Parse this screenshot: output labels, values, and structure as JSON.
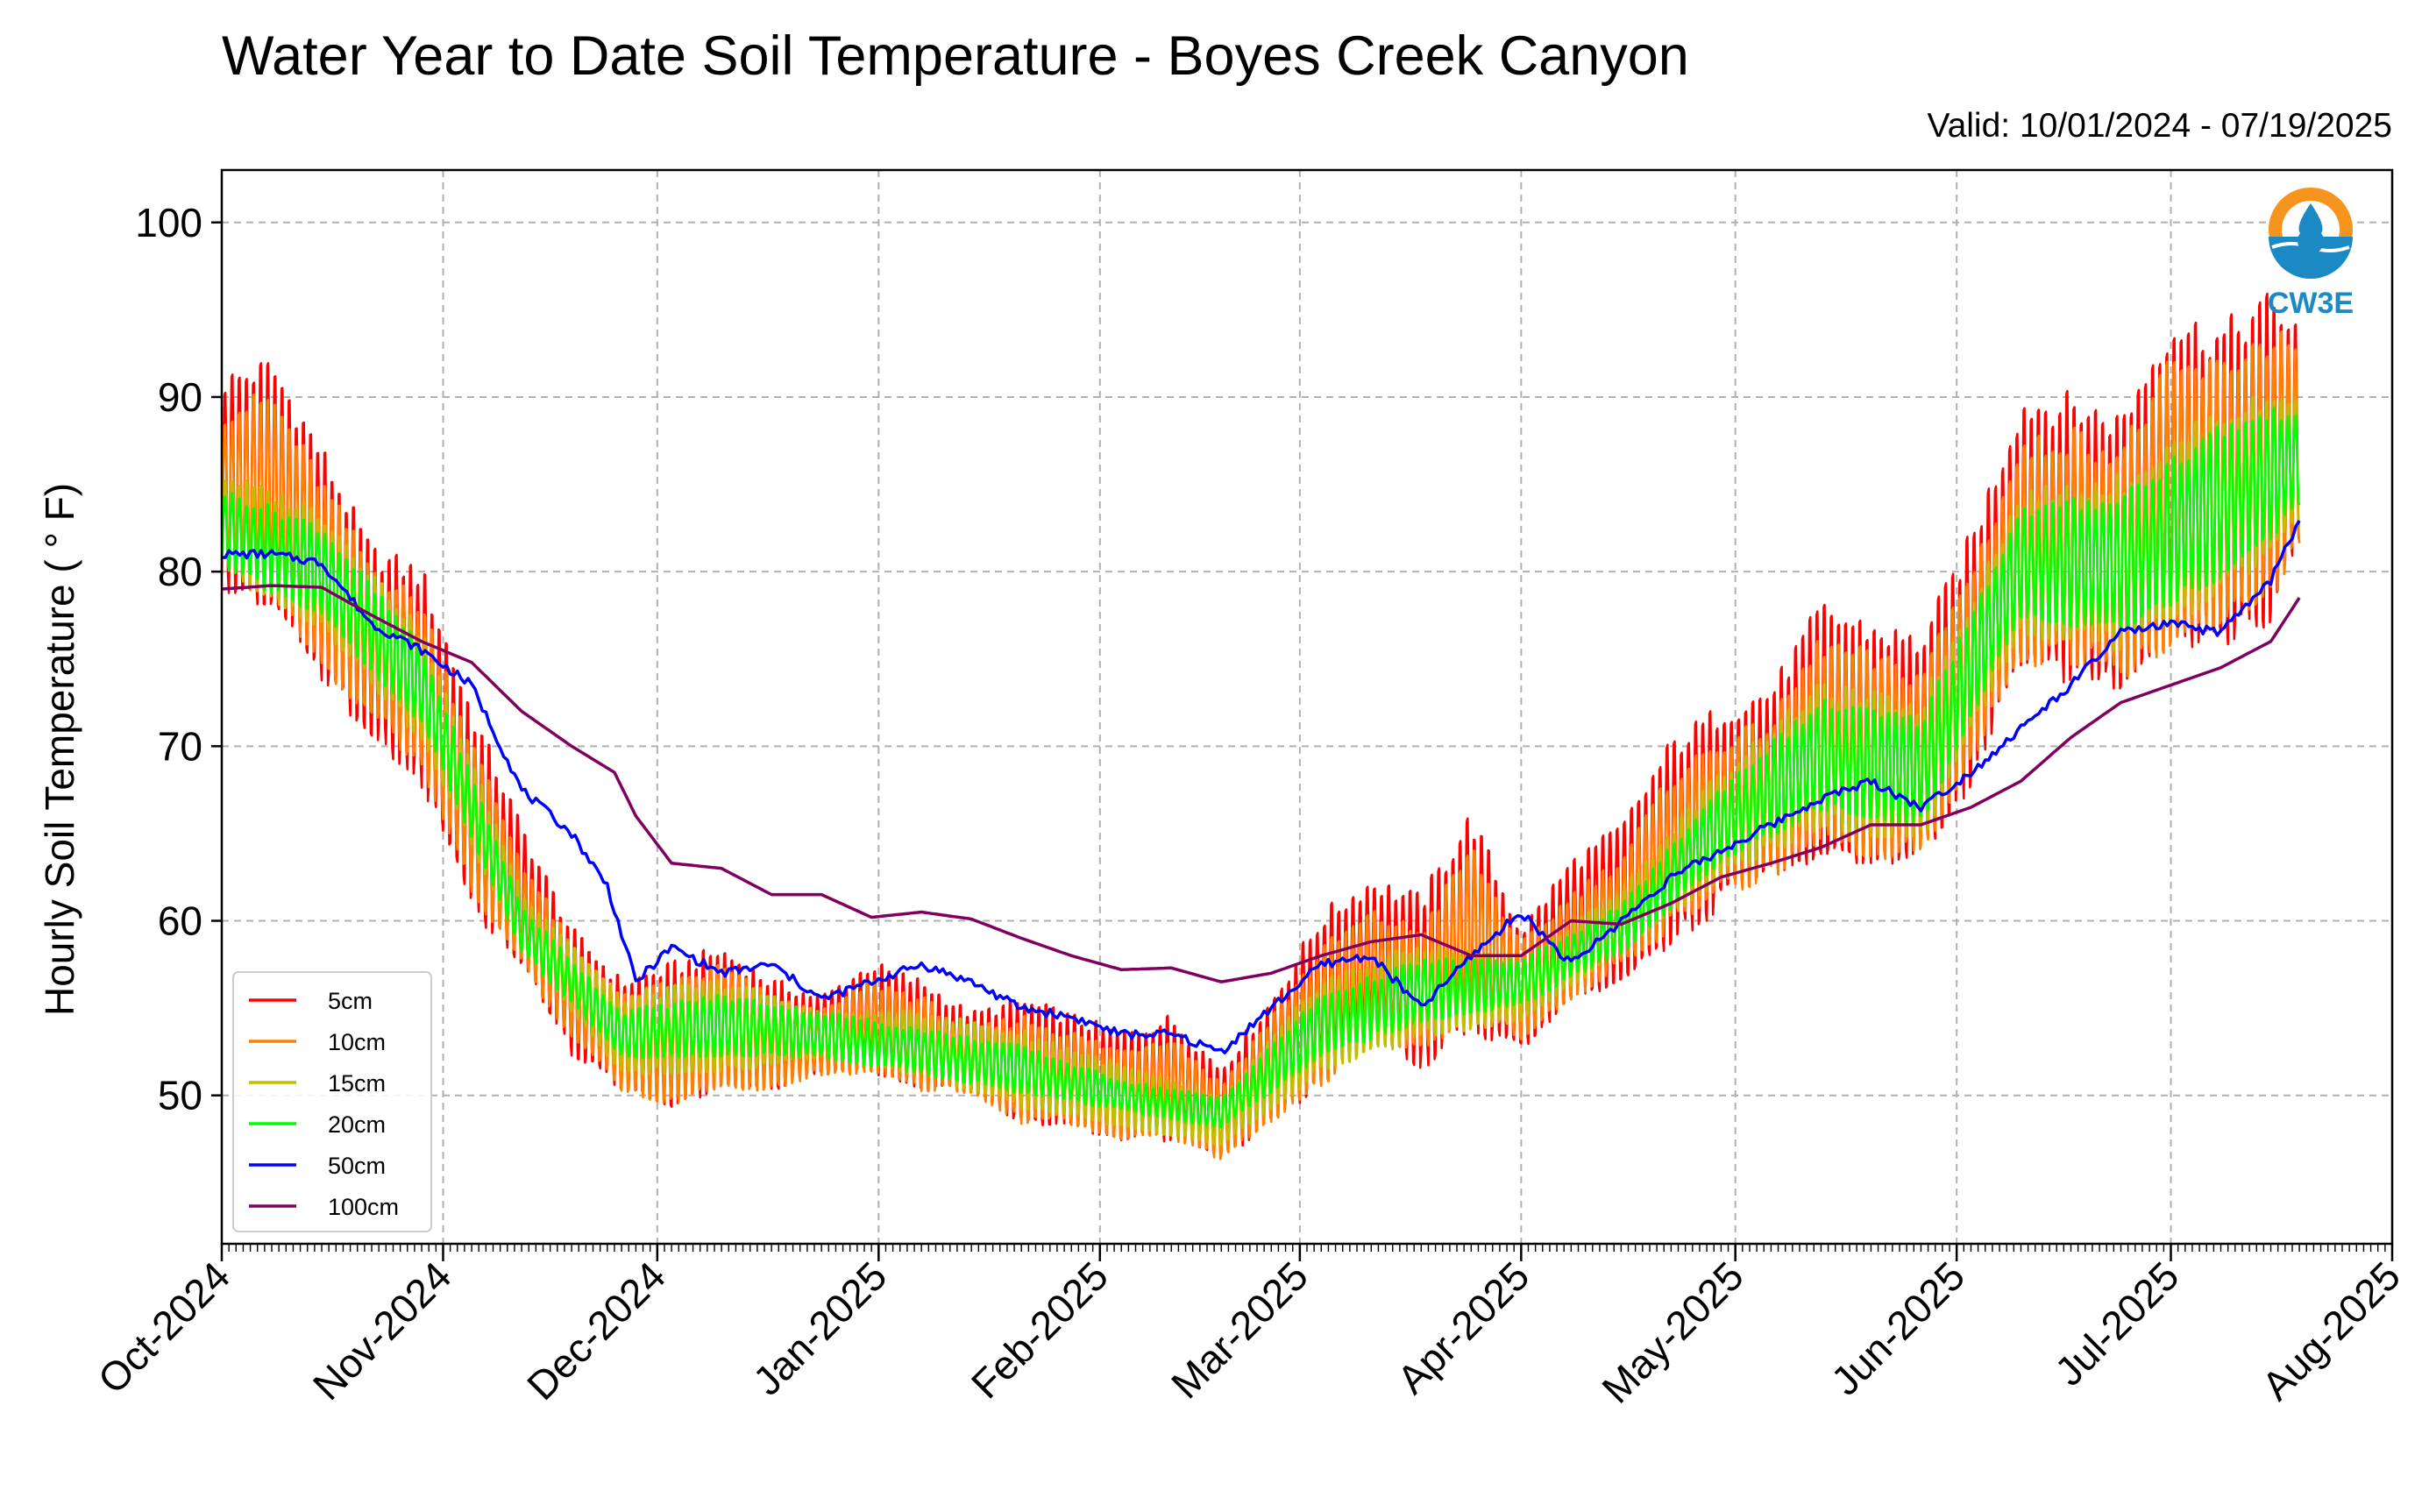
{
  "title": "Water Year to Date Soil Temperature - Boyes Creek Canyon",
  "valid": "Valid: 10/01/2024 - 07/19/2025",
  "logo_text": "CW3E",
  "colors": {
    "5cm": "#ff0000",
    "10cm": "#ff8000",
    "15cm": "#bfbf00",
    "20cm": "#00ff00",
    "50cm": "#0000ff",
    "100cm": "#800060",
    "logo_orange": "#f7941d",
    "logo_blue": "#1b8ac4",
    "grid": "#b0b0b0"
  },
  "chart_data": {
    "type": "line",
    "title": "Water Year to Date Soil Temperature - Boyes Creek Canyon",
    "subtitle": "Valid: 10/01/2024 - 07/19/2025",
    "xlabel": "",
    "ylabel": "Hourly Soil Temperature ( ° F)",
    "ylim": [
      41.5,
      103
    ],
    "xlim": [
      "2024-10-01",
      "2025-08-01"
    ],
    "yticks": [
      50,
      60,
      70,
      80,
      90,
      100
    ],
    "xtick_labels": [
      "Oct-2024",
      "Nov-2024",
      "Dec-2024",
      "Jan-2025",
      "Feb-2025",
      "Mar-2025",
      "Apr-2025",
      "May-2025",
      "Jun-2025",
      "Jul-2025",
      "Aug-2025"
    ],
    "xtick_dates": [
      "2024-10-01",
      "2024-11-01",
      "2024-12-01",
      "2025-01-01",
      "2025-02-01",
      "2025-03-01",
      "2025-04-01",
      "2025-05-01",
      "2025-06-01",
      "2025-07-01",
      "2025-08-01"
    ],
    "grid": true,
    "legend_position": "lower-left",
    "series": [
      {
        "name": "5cm",
        "note": "daily max / min envelope, hourly oscillation",
        "dates": [
          "2024-10-01",
          "2024-10-08",
          "2024-10-15",
          "2024-10-22",
          "2024-10-29",
          "2024-11-05",
          "2024-11-12",
          "2024-11-19",
          "2024-11-26",
          "2024-12-03",
          "2024-12-10",
          "2024-12-17",
          "2024-12-24",
          "2024-12-31",
          "2025-01-07",
          "2025-01-14",
          "2025-01-21",
          "2025-01-28",
          "2025-02-04",
          "2025-02-11",
          "2025-02-18",
          "2025-02-25",
          "2025-03-04",
          "2025-03-11",
          "2025-03-18",
          "2025-03-25",
          "2025-04-01",
          "2025-04-08",
          "2025-04-15",
          "2025-04-22",
          "2025-04-29",
          "2025-05-06",
          "2025-05-13",
          "2025-05-20",
          "2025-05-27",
          "2025-06-03",
          "2025-06-10",
          "2025-06-17",
          "2025-06-24",
          "2025-07-01",
          "2025-07-08",
          "2025-07-15",
          "2025-07-19"
        ],
        "max": [
          92,
          93,
          88,
          82,
          81,
          73,
          66,
          60,
          57,
          58,
          59,
          57,
          56,
          58,
          57,
          55,
          56,
          55,
          54,
          55,
          52,
          56,
          61,
          63,
          62,
          67,
          60,
          64,
          66,
          71,
          73,
          74,
          79,
          78,
          77,
          83,
          91,
          91,
          90,
          96,
          95,
          97,
          95
        ],
        "min": [
          78,
          77,
          73,
          70,
          67,
          60,
          57,
          52,
          50,
          49,
          50,
          50,
          51,
          51,
          50,
          50,
          48,
          48,
          47,
          47,
          46,
          48,
          50,
          53,
          51,
          53,
          52,
          55,
          56,
          58,
          60,
          62,
          63,
          62,
          63,
          67,
          73,
          73,
          72,
          74,
          75,
          76,
          81
        ]
      },
      {
        "name": "10cm",
        "dates": [
          "2024-10-01",
          "2024-10-08",
          "2024-10-15",
          "2024-10-22",
          "2024-10-29",
          "2024-11-05",
          "2024-11-12",
          "2024-11-19",
          "2024-11-26",
          "2024-12-03",
          "2024-12-10",
          "2024-12-17",
          "2024-12-24",
          "2024-12-31",
          "2025-01-07",
          "2025-01-14",
          "2025-01-21",
          "2025-01-28",
          "2025-02-04",
          "2025-02-11",
          "2025-02-18",
          "2025-02-25",
          "2025-03-04",
          "2025-03-11",
          "2025-03-18",
          "2025-03-25",
          "2025-04-01",
          "2025-04-08",
          "2025-04-15",
          "2025-04-22",
          "2025-04-29",
          "2025-05-06",
          "2025-05-13",
          "2025-05-20",
          "2025-05-27",
          "2025-06-03",
          "2025-06-10",
          "2025-06-17",
          "2025-06-24",
          "2025-07-01",
          "2025-07-08",
          "2025-07-15",
          "2025-07-19"
        ],
        "max": [
          90,
          91,
          86,
          81,
          79,
          71,
          64,
          59,
          56,
          57,
          58,
          56,
          55,
          57,
          56,
          54,
          55,
          54,
          53,
          54,
          51,
          55,
          59,
          61,
          60,
          65,
          59,
          62,
          64,
          69,
          71,
          72,
          77,
          76,
          75,
          81,
          88,
          89,
          88,
          93,
          93,
          95,
          94
        ],
        "min": [
          79,
          78,
          74,
          71,
          68,
          61,
          57,
          53,
          50,
          49,
          50,
          50,
          51,
          51,
          50,
          50,
          48,
          48,
          47,
          47,
          46,
          48,
          50,
          53,
          52,
          54,
          53,
          55,
          57,
          59,
          61,
          62,
          64,
          63,
          63,
          68,
          74,
          74,
          73,
          75,
          76,
          77,
          81
        ]
      },
      {
        "name": "15cm",
        "dates": [
          "2024-10-01",
          "2024-10-15",
          "2024-10-29",
          "2024-11-12",
          "2024-11-26",
          "2024-12-10",
          "2024-12-24",
          "2025-01-07",
          "2025-01-21",
          "2025-02-04",
          "2025-02-18",
          "2025-03-04",
          "2025-03-18",
          "2025-04-01",
          "2025-04-15",
          "2025-04-29",
          "2025-05-13",
          "2025-05-27",
          "2025-06-10",
          "2025-06-24",
          "2025-07-08",
          "2025-07-19"
        ],
        "max": [
          86,
          84,
          77,
          62,
          56,
          57,
          55,
          55,
          54,
          52,
          50,
          57,
          59,
          58,
          62,
          69,
          74,
          73,
          85,
          86,
          90,
          91
        ],
        "min": [
          80,
          76,
          70,
          58,
          51,
          51,
          52,
          51,
          49,
          48,
          47,
          51,
          53,
          54,
          58,
          62,
          65,
          64,
          76,
          75,
          78,
          82
        ]
      },
      {
        "name": "20cm",
        "dates": [
          "2024-10-01",
          "2024-10-15",
          "2024-10-29",
          "2024-11-12",
          "2024-11-26",
          "2024-12-10",
          "2024-12-24",
          "2025-01-07",
          "2025-01-21",
          "2025-02-04",
          "2025-02-18",
          "2025-03-04",
          "2025-03-18",
          "2025-04-01",
          "2025-04-15",
          "2025-04-29",
          "2025-05-13",
          "2025-05-27",
          "2025-06-10",
          "2025-06-24",
          "2025-07-08",
          "2025-07-19"
        ],
        "max": [
          85,
          83,
          76,
          61,
          55,
          56,
          55,
          54,
          53,
          51,
          50,
          56,
          58,
          58,
          61,
          68,
          73,
          72,
          84,
          85,
          89,
          90
        ],
        "min": [
          80,
          77,
          71,
          58,
          52,
          52,
          52,
          51,
          50,
          49,
          48,
          52,
          54,
          55,
          58,
          63,
          66,
          65,
          77,
          76,
          79,
          83
        ]
      },
      {
        "name": "50cm",
        "dates": [
          "2024-10-01",
          "2024-10-08",
          "2024-10-15",
          "2024-10-22",
          "2024-10-29",
          "2024-11-05",
          "2024-11-12",
          "2024-11-19",
          "2024-11-24",
          "2024-11-28",
          "2024-12-03",
          "2024-12-10",
          "2024-12-17",
          "2024-12-24",
          "2024-12-31",
          "2025-01-07",
          "2025-01-14",
          "2025-01-21",
          "2025-01-28",
          "2025-02-04",
          "2025-02-11",
          "2025-02-18",
          "2025-02-25",
          "2025-03-04",
          "2025-03-11",
          "2025-03-18",
          "2025-03-25",
          "2025-04-01",
          "2025-04-08",
          "2025-04-15",
          "2025-04-22",
          "2025-04-29",
          "2025-05-06",
          "2025-05-13",
          "2025-05-20",
          "2025-05-27",
          "2025-06-03",
          "2025-06-10",
          "2025-06-17",
          "2025-06-24",
          "2025-07-01",
          "2025-07-08",
          "2025-07-15",
          "2025-07-19"
        ],
        "values": [
          81,
          81,
          80.5,
          77,
          75.5,
          73.5,
          67.5,
          65,
          62,
          56.5,
          58.5,
          57,
          57.5,
          55.5,
          56.5,
          57.5,
          56.5,
          55,
          54.5,
          53.5,
          53.5,
          52.5,
          55,
          57.5,
          58,
          55,
          58,
          60.5,
          57.5,
          60,
          62.5,
          64,
          65.5,
          67,
          68,
          66.5,
          68.5,
          71,
          73.5,
          76.5,
          77,
          76.5,
          79.5,
          83
        ]
      },
      {
        "name": "100cm",
        "dates": [
          "2024-10-01",
          "2024-10-08",
          "2024-10-15",
          "2024-10-22",
          "2024-10-29",
          "2024-11-05",
          "2024-11-12",
          "2024-11-19",
          "2024-11-25",
          "2024-11-28",
          "2024-12-03",
          "2024-12-10",
          "2024-12-17",
          "2024-12-24",
          "2024-12-31",
          "2025-01-07",
          "2025-01-14",
          "2025-01-21",
          "2025-01-28",
          "2025-02-04",
          "2025-02-11",
          "2025-02-18",
          "2025-02-25",
          "2025-03-04",
          "2025-03-11",
          "2025-03-18",
          "2025-03-25",
          "2025-04-01",
          "2025-04-08",
          "2025-04-15",
          "2025-04-22",
          "2025-04-29",
          "2025-05-06",
          "2025-05-13",
          "2025-05-20",
          "2025-05-27",
          "2025-06-03",
          "2025-06-10",
          "2025-06-17",
          "2025-06-24",
          "2025-07-01",
          "2025-07-08",
          "2025-07-15",
          "2025-07-19"
        ],
        "values": [
          79,
          79.2,
          79.1,
          77.5,
          76,
          74.8,
          72,
          70,
          68.5,
          66,
          63.3,
          63,
          61.5,
          61.5,
          60.2,
          60.5,
          60.1,
          59,
          58,
          57.2,
          57.3,
          56.5,
          57,
          58,
          58.8,
          59.2,
          58,
          58,
          60,
          59.8,
          61,
          62.5,
          63.3,
          64.2,
          65.5,
          65.5,
          66.5,
          68,
          70.5,
          72.5,
          73.5,
          74.5,
          76,
          78.5
        ]
      }
    ]
  }
}
